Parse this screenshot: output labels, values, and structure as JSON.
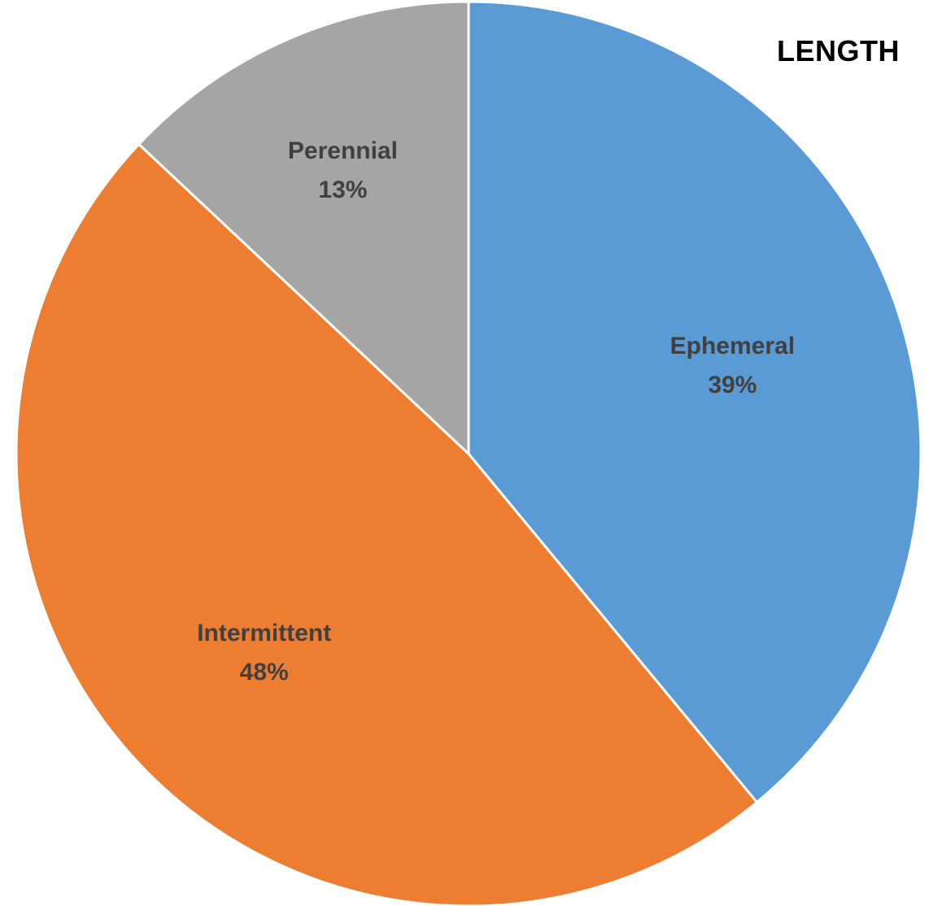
{
  "chart_data": {
    "type": "pie",
    "title": "LENGTH",
    "start_angle_deg": 0,
    "direction": "clockwise",
    "slices": [
      {
        "label": "Ephemeral",
        "value": 39,
        "value_label": "39%",
        "color": "#5B9BD5"
      },
      {
        "label": "Intermittent",
        "value": 48,
        "value_label": "48%",
        "color": "#ED7D31"
      },
      {
        "label": "Perennial",
        "value": 13,
        "value_label": "13%",
        "color": "#A5A5A5"
      }
    ],
    "legend": "none",
    "label_color": "#404040",
    "slice_border_color": "#FFFFFF"
  }
}
